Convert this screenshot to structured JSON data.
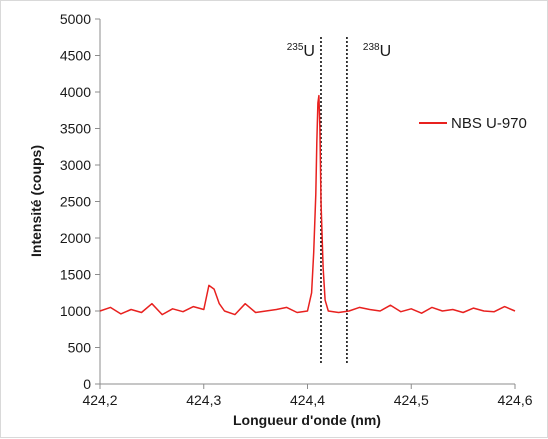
{
  "chart_data": {
    "type": "line",
    "xlabel": "Longueur d'onde (nm)",
    "ylabel": "Intensité (coups)",
    "xlim": [
      424.2,
      424.6
    ],
    "ylim": [
      0,
      5000
    ],
    "x_ticks": [
      "424,2",
      "424,3",
      "424,4",
      "424,5",
      "424,6"
    ],
    "y_ticks": [
      "0",
      "500",
      "1000",
      "1500",
      "2000",
      "2500",
      "3000",
      "3500",
      "4000",
      "4500",
      "5000"
    ],
    "legend_position": "right",
    "series": [
      {
        "name": "NBS U-970",
        "color": "#e8211f",
        "x": [
          424.2,
          424.21,
          424.22,
          424.23,
          424.24,
          424.25,
          424.26,
          424.27,
          424.28,
          424.29,
          424.3,
          424.305,
          424.31,
          424.315,
          424.32,
          424.33,
          424.34,
          424.35,
          424.36,
          424.37,
          424.38,
          424.39,
          424.4,
          424.404,
          424.406,
          424.408,
          424.409,
          424.41,
          424.411,
          424.412,
          424.413,
          424.415,
          424.417,
          424.42,
          424.43,
          424.44,
          424.45,
          424.46,
          424.47,
          424.48,
          424.49,
          424.5,
          424.51,
          424.52,
          424.53,
          424.54,
          424.55,
          424.56,
          424.57,
          424.58,
          424.59,
          424.6
        ],
        "y": [
          1000,
          1050,
          960,
          1020,
          980,
          1100,
          950,
          1030,
          990,
          1060,
          1020,
          1350,
          1300,
          1100,
          1000,
          950,
          1100,
          980,
          1000,
          1020,
          1050,
          980,
          1000,
          1250,
          1800,
          2600,
          3300,
          3850,
          3950,
          3500,
          2500,
          1600,
          1150,
          1000,
          980,
          1000,
          1050,
          1020,
          1000,
          1080,
          990,
          1030,
          970,
          1050,
          1000,
          1020,
          980,
          1040,
          1000,
          990,
          1060,
          1000
        ]
      }
    ],
    "annotations": [
      {
        "mass": "235",
        "element": "U",
        "x": 424.413
      },
      {
        "mass": "238",
        "element": "U",
        "x": 424.438
      }
    ]
  }
}
